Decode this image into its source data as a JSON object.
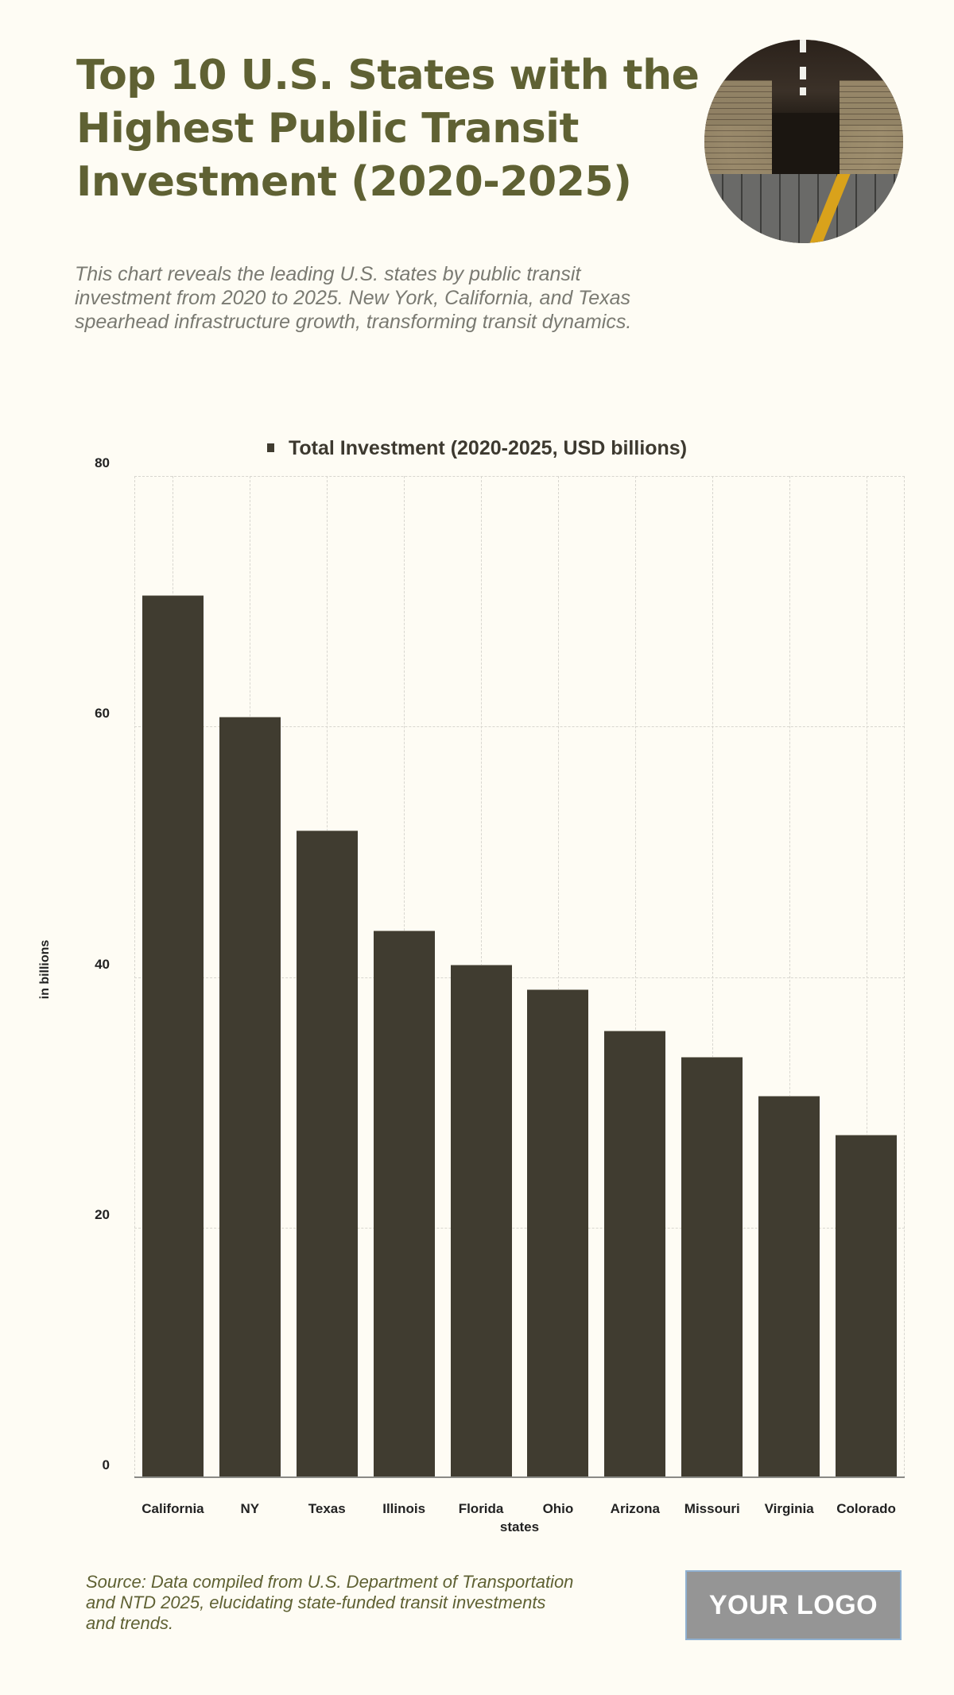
{
  "header": {
    "title": "Top 10 U.S. States with the Highest Public Transit Investment (2020-2025)",
    "subtitle": "This chart reveals the leading U.S. states by public transit investment from 2020 to 2025. New York, California, and Texas spearhead infrastructure growth, transforming transit dynamics.",
    "image_icon": "subway-corridor-photo"
  },
  "legend": {
    "label": "Total Investment (2020-2025, USD billions)"
  },
  "footer": {
    "source": "Source: Data compiled from U.S. Department of Transportation and NTD 2025, elucidating state-funded transit investments and trends.",
    "logo_text": "YOUR LOGO"
  },
  "colors": {
    "bar": "#403c30",
    "title": "#5f6133",
    "background": "#fefcf4",
    "subtitle": "#7a7a72"
  },
  "chart_data": {
    "type": "bar",
    "title": "Top 10 U.S. States with the Highest Public Transit Investment (2020-2025)",
    "categories": [
      "California",
      "NY",
      "Texas",
      "Illinois",
      "Florida",
      "Ohio",
      "Arizona",
      "Missouri",
      "Virginia",
      "Colorado"
    ],
    "series": [
      {
        "name": "Total Investment (2020-2025, USD billions)",
        "values": [
          70.5,
          60.8,
          51.7,
          43.7,
          41.0,
          39.0,
          35.7,
          33.6,
          30.5,
          27.4
        ]
      }
    ],
    "values": [
      70.5,
      60.8,
      51.7,
      43.7,
      41.0,
      39.0,
      35.7,
      33.6,
      30.5,
      27.4
    ],
    "xlabel": "states",
    "ylabel": "in billions",
    "ylim": [
      0,
      80
    ],
    "yticks": [
      "0",
      "20",
      "40",
      "60",
      "80"
    ],
    "grid": true,
    "legend_position": "top"
  }
}
